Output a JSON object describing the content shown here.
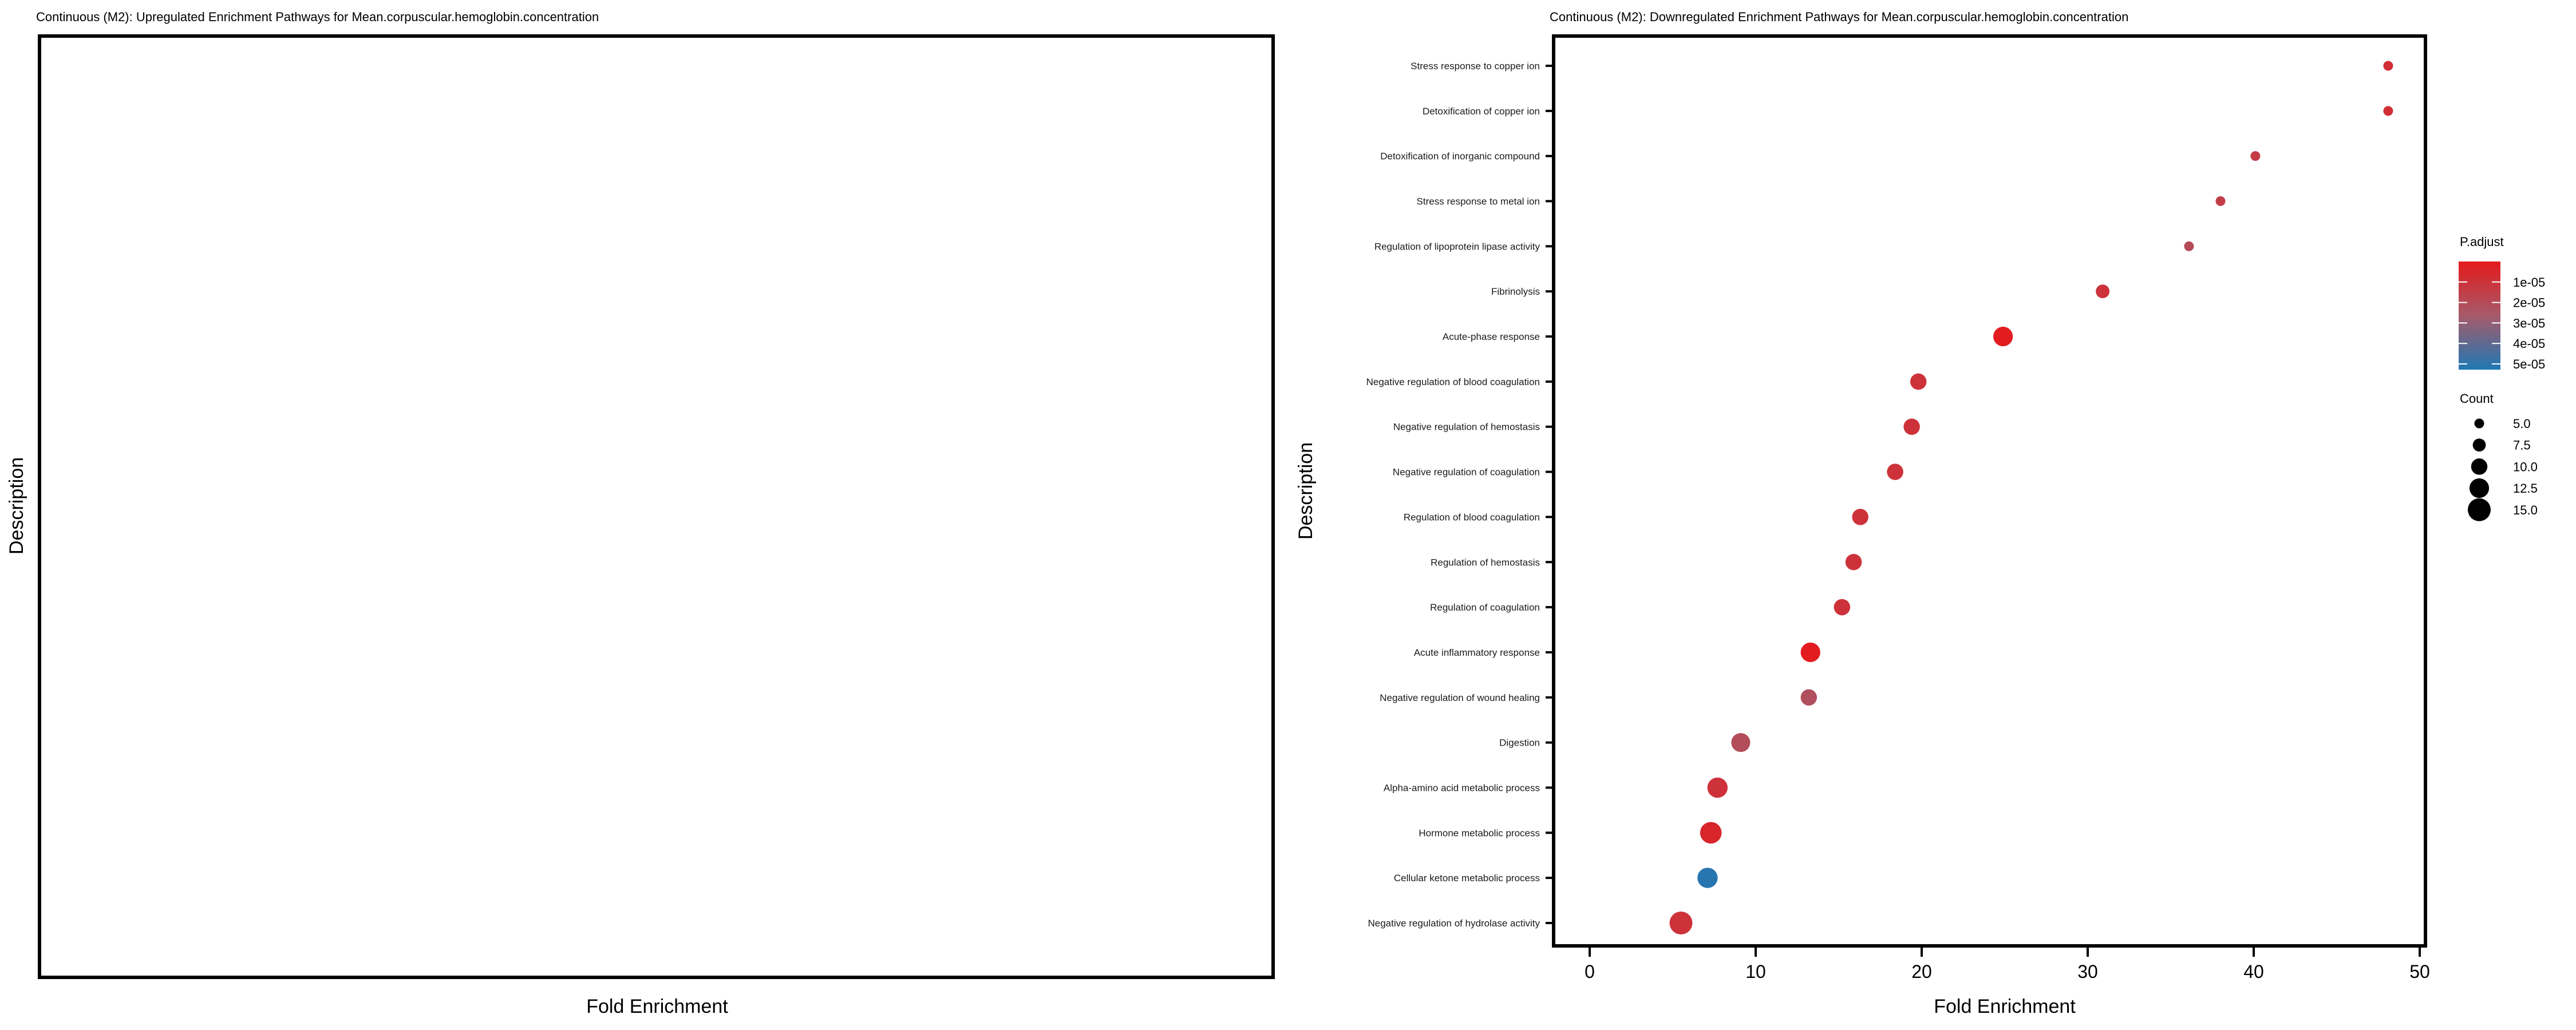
{
  "left_panel": {
    "title": "Continuous (M2): Upregulated Enrichment Pathways for Mean.corpuscular.hemoglobin.concentration",
    "xlabel": "Fold Enrichment",
    "ylabel": "Description"
  },
  "chart_data": {
    "type": "scatter",
    "title": "Continuous (M2): Downregulated Enrichment Pathways for Mean.corpuscular.hemoglobin.concentration",
    "xlabel": "Fold Enrichment",
    "ylabel": "Description",
    "xlim": [
      -2.5,
      51
    ],
    "xticks": [
      0,
      10,
      20,
      30,
      40,
      50
    ],
    "grid": false,
    "categories": [
      "Stress response to copper ion",
      "Detoxification of copper ion",
      "Detoxification of inorganic compound",
      "Stress response to metal ion",
      "Regulation of lipoprotein lipase activity",
      "Fibrinolysis",
      "Acute-phase response",
      "Negative regulation of blood coagulation",
      "Negative regulation of hemostasis",
      "Negative regulation of coagulation",
      "Regulation of blood coagulation",
      "Regulation of hemostasis",
      "Regulation of coagulation",
      "Acute inflammatory response",
      "Negative regulation of wound healing",
      "Digestion",
      "Alpha-amino acid metabolic process",
      "Hormone metabolic process",
      "Cellular ketone metabolic process",
      "Negative regulation of hydrolase activity"
    ],
    "fold_enrichment": [
      48.1,
      48.1,
      40.1,
      38.0,
      36.1,
      30.9,
      24.9,
      19.8,
      19.4,
      18.4,
      16.3,
      15.9,
      15.2,
      13.3,
      13.2,
      9.1,
      7.7,
      7.3,
      7.1,
      5.5
    ],
    "count": [
      5,
      5,
      5,
      5,
      5,
      8,
      12.5,
      10,
      10,
      10,
      10,
      10,
      10,
      12.5,
      10,
      12,
      13,
      14,
      13,
      15
    ],
    "p_adjust": [
      8e-06,
      8e-06,
      1.4e-05,
      1.5e-05,
      2e-05,
      1e-05,
      1e-06,
      1e-05,
      1e-05,
      1e-05,
      1e-05,
      1e-05,
      1e-05,
      1e-06,
      2.2e-05,
      2.1e-05,
      1e-05,
      5e-06,
      5.1e-05,
      1e-05
    ],
    "legend": {
      "color_title": "P.adjust",
      "color_ticks": [
        "1e-05",
        "2e-05",
        "3e-05",
        "4e-05",
        "5e-05"
      ],
      "color_tick_values": [
        1e-05,
        2e-05,
        3e-05,
        4e-05,
        5e-05
      ],
      "color_range": [
        0,
        5.28e-05
      ],
      "color_low": "#e41a1c",
      "color_mid": "#a65a6a",
      "color_high": "#1f78b4",
      "size_title": "Count",
      "size_labels": [
        "5.0",
        "7.5",
        "10.0",
        "12.5",
        "15.0"
      ],
      "size_values": [
        5,
        7.5,
        10,
        12.5,
        15
      ],
      "placement": "right"
    }
  }
}
